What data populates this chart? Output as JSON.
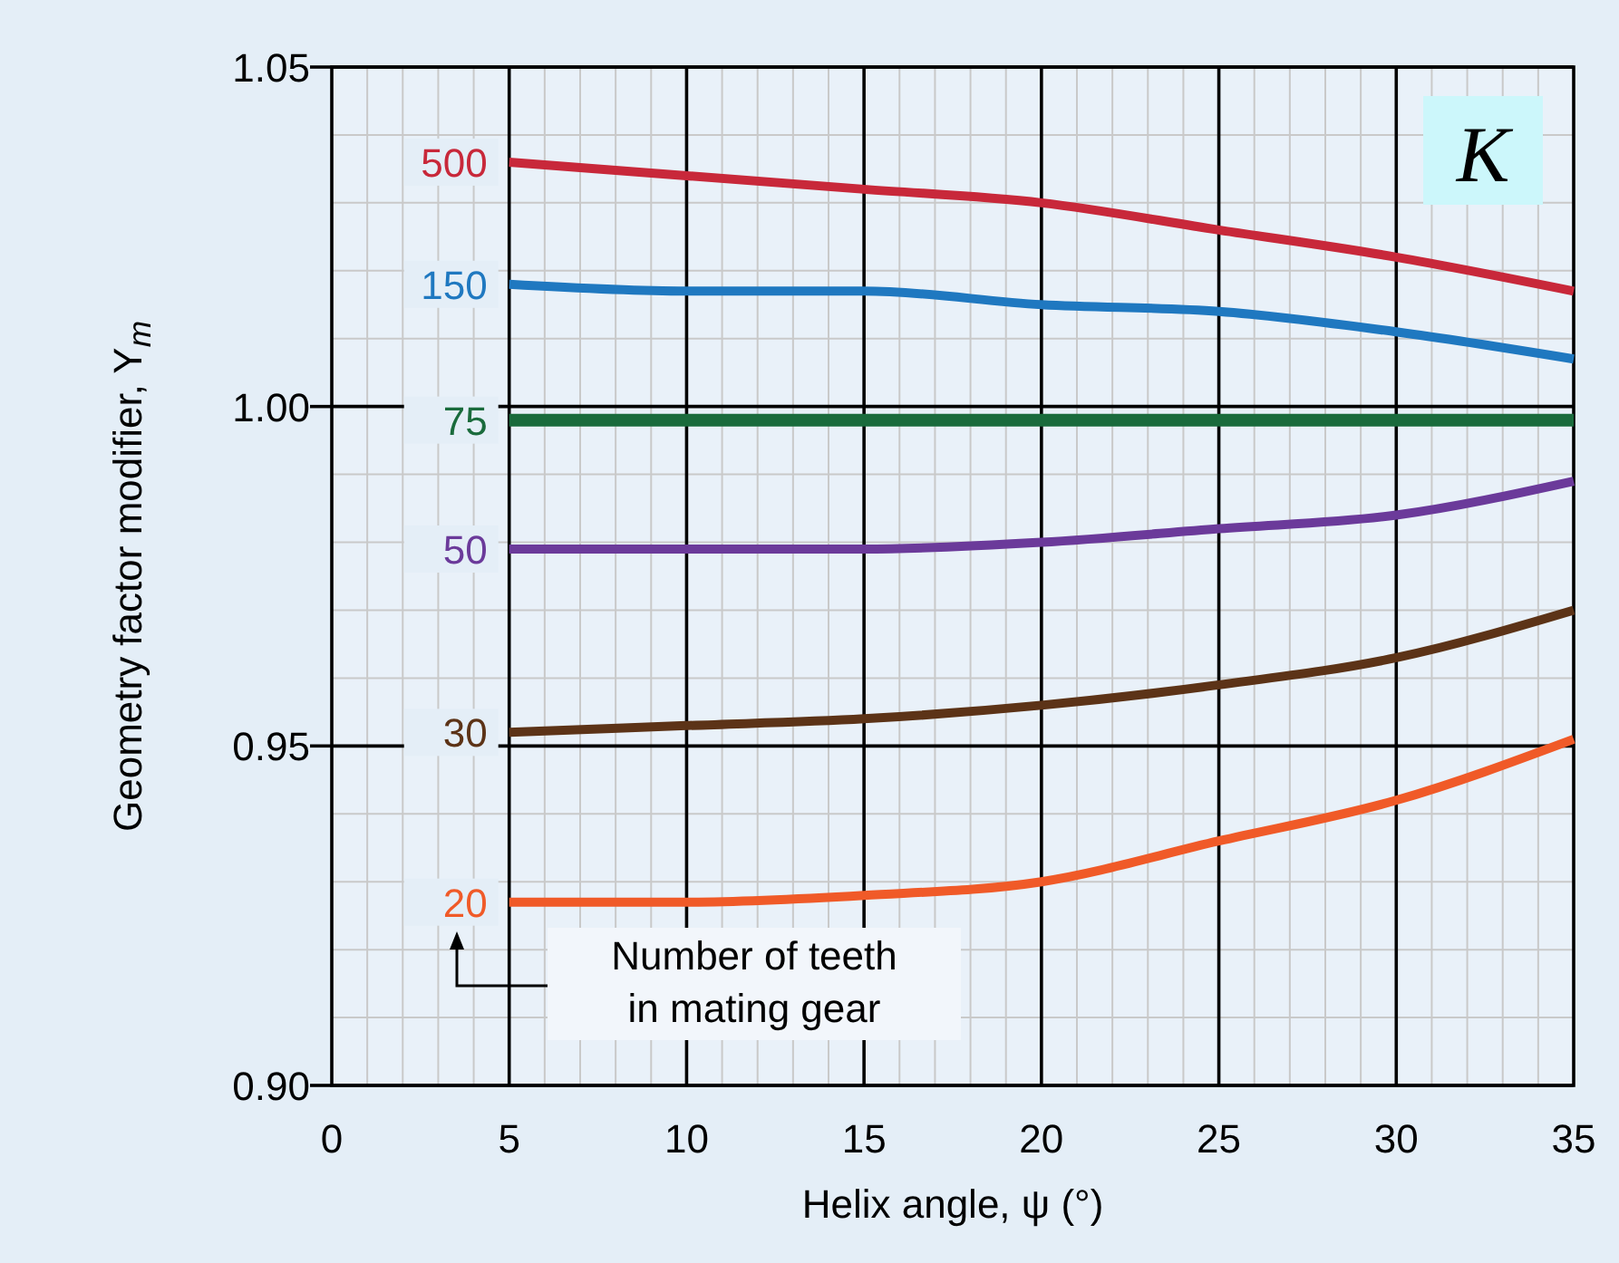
{
  "chart_data": {
    "type": "line",
    "xlabel": "Helix angle, ψ (°)",
    "ylabel": "Geometry factor modifier, Y$_{m}$",
    "annotations": [
      "K",
      "Number of teeth\nin mating gear"
    ],
    "x": [
      5,
      10,
      15,
      20,
      25,
      30,
      35
    ],
    "xlim": [
      0,
      35
    ],
    "xticks": [
      0,
      5,
      10,
      15,
      20,
      25,
      30,
      35
    ],
    "ylim": [
      0.9,
      1.05
    ],
    "yticks": [
      {
        "value": 0.9,
        "label": "0.90"
      },
      {
        "value": 0.95,
        "label": "0.95"
      },
      {
        "value": 1.0,
        "label": "1.00"
      },
      {
        "value": 1.05,
        "label": "1.05"
      }
    ],
    "grid": true,
    "marker": "none",
    "line_style": "solid",
    "series": [
      {
        "name": "500",
        "color": "#c8283a",
        "values": [
          1.036,
          1.034,
          1.032,
          1.03,
          1.026,
          1.022,
          1.017
        ]
      },
      {
        "name": "150",
        "color": "#1f78c0",
        "values": [
          1.018,
          1.017,
          1.017,
          1.015,
          1.014,
          1.011,
          1.007
        ]
      },
      {
        "name": "75",
        "color": "#1a6b3c",
        "values": [
          0.998,
          0.998,
          0.998,
          0.998,
          0.998,
          0.998,
          0.998
        ]
      },
      {
        "name": "50",
        "color": "#6b3a9a",
        "values": [
          0.979,
          0.979,
          0.979,
          0.98,
          0.982,
          0.984,
          0.989
        ]
      },
      {
        "name": "30",
        "color": "#5c3317",
        "values": [
          0.952,
          0.953,
          0.954,
          0.956,
          0.959,
          0.963,
          0.97
        ]
      },
      {
        "name": "20",
        "color": "#f05a28",
        "values": [
          0.927,
          0.927,
          0.928,
          0.93,
          0.936,
          0.942,
          0.951
        ]
      }
    ]
  }
}
